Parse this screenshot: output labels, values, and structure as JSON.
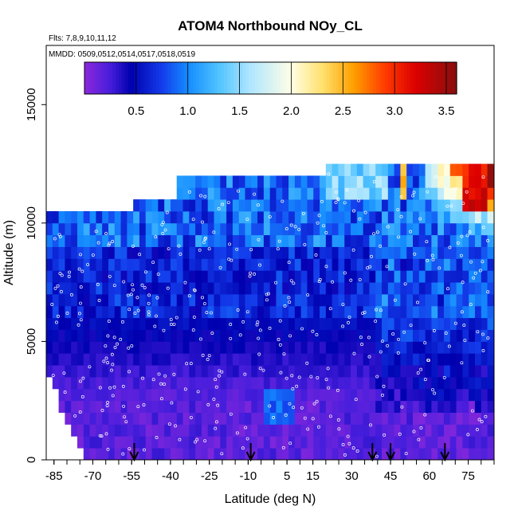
{
  "chart_data": {
    "type": "heatmap",
    "title": "ATOM4 Northbound NOy_CL",
    "flights_note": "Flts: 7,8,9,10,11,12",
    "dates_note": "MMDD: 0509,0512,0514,0517,0518,0519",
    "xlabel": "Latitude (deg N)",
    "ylabel": "Altitude (m)",
    "xlim": [
      -88,
      85
    ],
    "ylim": [
      0,
      17500
    ],
    "x_ticks": [
      -85,
      -70,
      -55,
      -40,
      -25,
      -10,
      5,
      15,
      30,
      45,
      60,
      75
    ],
    "x_tick_labels": [
      "-85",
      "-70",
      "-55",
      "-40",
      "-25",
      "-10",
      "5",
      "15",
      "30",
      "45",
      "60",
      "75"
    ],
    "y_ticks": [
      0,
      5000,
      10000,
      15000
    ],
    "y_tick_labels": [
      "0",
      "5000",
      "10000",
      "15000"
    ],
    "colorbar": {
      "range": [
        0,
        3.6
      ],
      "ticks": [
        0.5,
        1.0,
        1.5,
        2.0,
        2.5,
        3.0,
        3.5
      ],
      "tick_labels": [
        "0.5",
        "1.0",
        "1.5",
        "2.0",
        "2.5",
        "3.0",
        "3.5"
      ]
    },
    "profile_arrows_lat": [
      -54,
      -9,
      38,
      45,
      66
    ],
    "grid": false
  }
}
